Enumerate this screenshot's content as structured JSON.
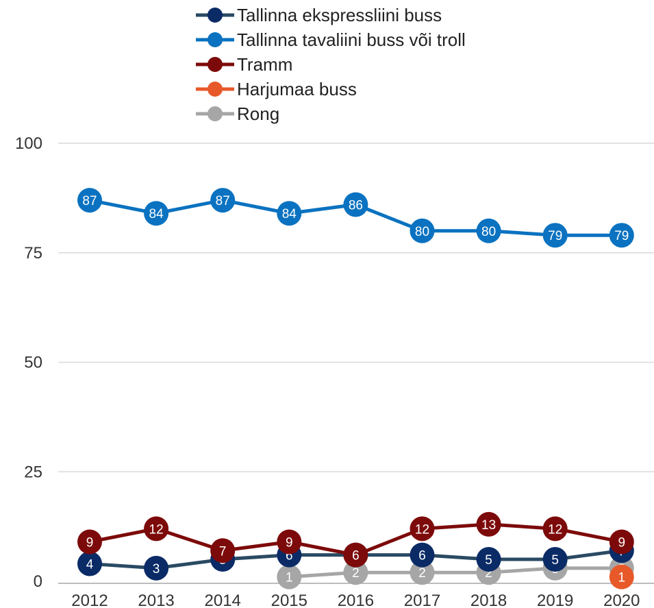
{
  "chart_data": {
    "type": "line",
    "title": "",
    "xlabel": "",
    "ylabel": "",
    "categories": [
      "2012",
      "2013",
      "2014",
      "2015",
      "2016",
      "2017",
      "2018",
      "2019",
      "2020"
    ],
    "ylim": [
      0,
      100
    ],
    "yticks": [
      0,
      25,
      50,
      75,
      100
    ],
    "grid": true,
    "legend_position": "top-center",
    "series": [
      {
        "name": "Tallinna ekspressliini buss",
        "color": "#2a4a63",
        "marker_color": "#0a2b66",
        "values": [
          4,
          3,
          5,
          6,
          6,
          6,
          5,
          5,
          7
        ]
      },
      {
        "name": "Tallinna tavaliini buss või troll",
        "color": "#0a72c0",
        "marker_color": "#0a72c0",
        "values": [
          87,
          84,
          87,
          84,
          86,
          80,
          80,
          79,
          79
        ]
      },
      {
        "name": "Tramm",
        "color": "#7d0a0a",
        "marker_color": "#7d0a0a",
        "values": [
          9,
          12,
          7,
          9,
          6,
          12,
          13,
          12,
          9
        ]
      },
      {
        "name": "Harjumaa buss",
        "color": "#e8592a",
        "marker_color": "#e8592a",
        "values": [
          null,
          null,
          null,
          null,
          null,
          null,
          null,
          null,
          1
        ]
      },
      {
        "name": "Rong",
        "color": "#a6a6a6",
        "marker_color": "#a6a6a6",
        "values": [
          null,
          null,
          null,
          1,
          2,
          2,
          2,
          3,
          3
        ]
      }
    ]
  }
}
